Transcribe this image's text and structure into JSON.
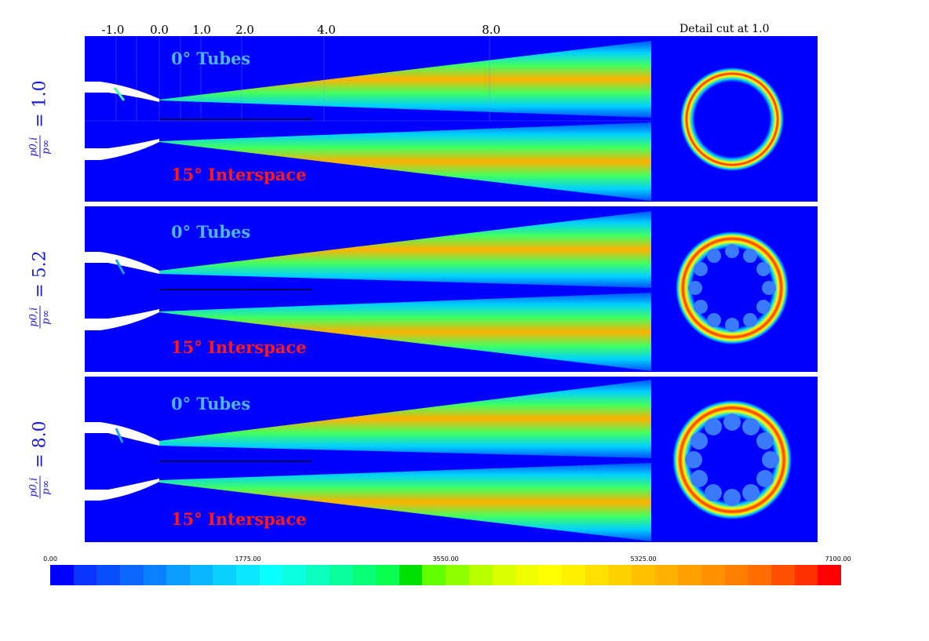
{
  "figure": {
    "axis_ticks": [
      "-1.0",
      "0.0",
      "1.0",
      "2.0",
      "4.0",
      "8.0"
    ],
    "detail_title": "Detail cut at 1.0",
    "label_tubes": "0° Tubes",
    "label_interspace": "15° Interspace",
    "ylabel_numerator": "p0,i",
    "ylabel_denominator": "p∞",
    "panels": [
      {
        "pressure_ratio": "= 1.0"
      },
      {
        "pressure_ratio": "= 5.2"
      },
      {
        "pressure_ratio": "= 8.0"
      }
    ],
    "colorbar": {
      "min": 0,
      "max": 7100,
      "tick_labels": [
        "0.00",
        "1775.00",
        "3550.00",
        "5325.00",
        "7100.00"
      ],
      "colors": [
        "#0000ff",
        "#0a34ff",
        "#0a4eff",
        "#0a68ff",
        "#0a82ff",
        "#0a9cff",
        "#0ab6ff",
        "#0ad0ff",
        "#0ae8ff",
        "#0affff",
        "#0affe0",
        "#0affc0",
        "#0aff9c",
        "#0aff78",
        "#0aff50",
        "#00e000",
        "#60ff00",
        "#90ff00",
        "#b8ff00",
        "#d8ff00",
        "#f0ff00",
        "#ffff00",
        "#fff000",
        "#ffe000",
        "#ffd000",
        "#ffc000",
        "#ffb000",
        "#ffa000",
        "#ff9000",
        "#ff8000",
        "#ff6c00",
        "#ff5000",
        "#ff3000",
        "#ff0000"
      ]
    },
    "accent_colors": {
      "background": "#0000ff",
      "tubes": "#4fb4ff",
      "interspace": "#ff1a1a"
    }
  }
}
